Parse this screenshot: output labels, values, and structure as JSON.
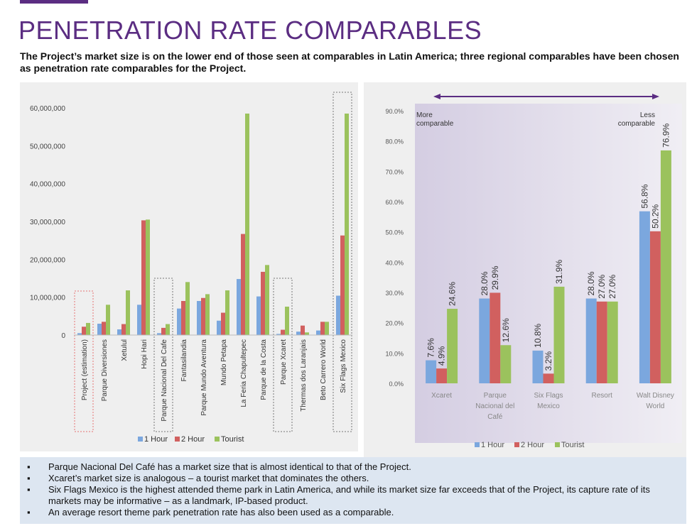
{
  "header": {
    "title": "PENETRATION RATE COMPARABLES",
    "subtitle": "The Project’s market size is on the lower end of those seen at comparables in Latin America; three regional comparables have been chosen as penetration rate comparables for the Project."
  },
  "colors": {
    "hour1": "#7ba7de",
    "hour2": "#d1605f",
    "tourist": "#9bc25d",
    "accent": "#5b2d82"
  },
  "chart_data": [
    {
      "type": "bar",
      "categories": [
        "Project (estimation)",
        "Parque Diversiones",
        "Xetulul",
        "Hopi Hari",
        "Parque Nacional Del Cafe",
        "Fantasilandia",
        "Parque Mundo Aventura",
        "Mundo Petapa",
        "La Feria Chapultepec",
        "Parque de la Costa",
        "Parque Xcaret",
        "Thermas dos Laranjais",
        "Beto Carrero World",
        "Six Flags Mexico"
      ],
      "series": [
        {
          "name": "1 Hour",
          "values": [
            500000,
            3000000,
            1500000,
            8000000,
            500000,
            7000000,
            9000000,
            3800000,
            14800000,
            10200000,
            300000,
            900000,
            1200000,
            10400000
          ]
        },
        {
          "name": "2 Hour",
          "values": [
            2200000,
            3500000,
            2900000,
            30300000,
            1900000,
            9000000,
            9800000,
            5900000,
            26700000,
            16700000,
            1400000,
            2500000,
            3500000,
            26300000
          ]
        },
        {
          "name": "Tourist",
          "values": [
            3200000,
            8000000,
            11800000,
            30500000,
            2900000,
            14000000,
            10800000,
            11800000,
            58500000,
            18500000,
            7500000,
            700000,
            3500000,
            58500000
          ]
        }
      ],
      "yticks": [
        "60,000,000",
        "50,000,000",
        "40,000,000",
        "30,000,000",
        "20,000,000",
        "10,000,000",
        "0"
      ],
      "ylim": [
        0,
        60000000
      ]
    },
    {
      "type": "bar",
      "categories": [
        [
          "Xcaret"
        ],
        [
          "Parque",
          "Nacional del",
          "Café"
        ],
        [
          "Six Flags",
          "Mexico"
        ],
        [
          "Resort"
        ],
        [
          "Walt Disney",
          "World"
        ]
      ],
      "series": [
        {
          "name": "1 Hour",
          "values": [
            7.6,
            28.0,
            10.8,
            28.0,
            56.8
          ],
          "labels": [
            "7.6%",
            "28.0%",
            "10.8%",
            "28.0%",
            "56.8%"
          ]
        },
        {
          "name": "2 Hour",
          "values": [
            4.9,
            29.9,
            3.2,
            27.0,
            50.2
          ],
          "labels": [
            "4.9%",
            "29.9%",
            "3.2%",
            "27.0%",
            "50.2%"
          ]
        },
        {
          "name": "Tourist",
          "values": [
            24.6,
            12.6,
            31.9,
            27.0,
            76.9
          ],
          "labels": [
            "24.6%",
            "12.6%",
            "31.9%",
            "27.0%",
            "76.9%"
          ]
        }
      ],
      "yticks": [
        "90.0%",
        "80.0%",
        "70.0%",
        "60.0%",
        "50.0%",
        "40.0%",
        "30.0%",
        "20.0%",
        "10.0%",
        "0.0%"
      ],
      "ylim": [
        0,
        90
      ],
      "annotations": {
        "left": [
          "More",
          "comparable"
        ],
        "right": [
          "Less",
          "comparable"
        ]
      }
    }
  ],
  "legend": [
    "1 Hour",
    "2 Hour",
    "Tourist"
  ],
  "notes": [
    "Parque Nacional Del Café has a market size that is almost identical to that of the Project.",
    "Xcaret’s market size is analogous – a tourist market that dominates the others.",
    "Six Flags Mexico is the highest attended theme park in Latin America, and while its market size far exceeds that of the Project, its capture rate of its markets may be informative – as a landmark, IP-based product.",
    "An average resort theme park penetration rate has also been used as a comparable."
  ],
  "bullet": "▪"
}
